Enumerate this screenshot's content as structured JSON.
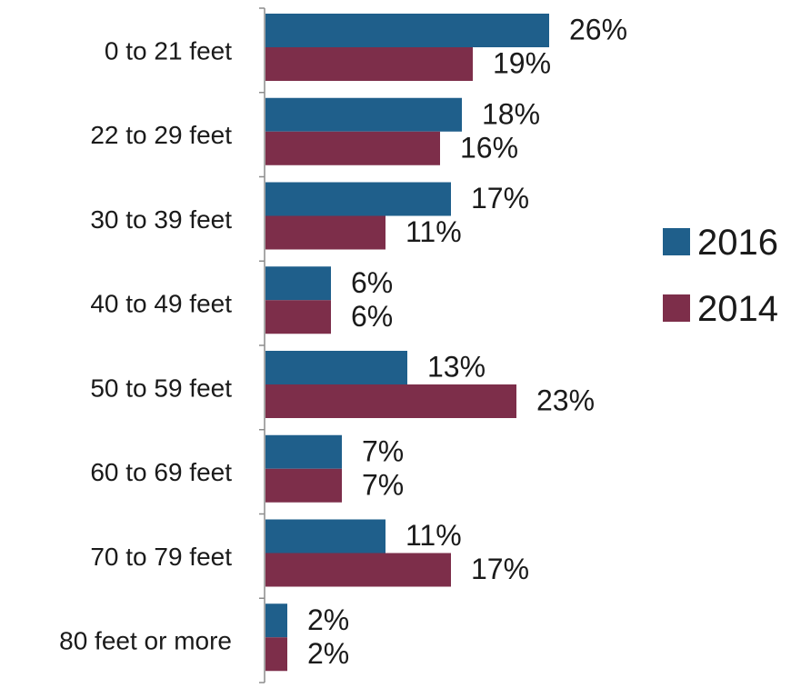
{
  "chart_data": {
    "type": "bar",
    "orientation": "horizontal",
    "categories": [
      "0 to 21 feet",
      "22 to 29 feet",
      "30 to 39 feet",
      "40 to 49 feet",
      "50 to 59 feet",
      "60 to 69 feet",
      "70 to 79 feet",
      "80 feet or more"
    ],
    "series": [
      {
        "name": "2016",
        "color": "#1f5f8b",
        "values": [
          26,
          18,
          17,
          6,
          13,
          7,
          11,
          2
        ],
        "labels": [
          "26%",
          "18%",
          "17%",
          "6%",
          "13%",
          "7%",
          "11%",
          "2%"
        ]
      },
      {
        "name": "2014",
        "color": "#7d2e4a",
        "values": [
          19,
          16,
          11,
          6,
          23,
          7,
          17,
          2
        ],
        "labels": [
          "19%",
          "16%",
          "11%",
          "6%",
          "23%",
          "7%",
          "17%",
          "2%"
        ]
      }
    ],
    "xlim": [
      0,
      30
    ],
    "grid": false,
    "legend_position": "right"
  }
}
